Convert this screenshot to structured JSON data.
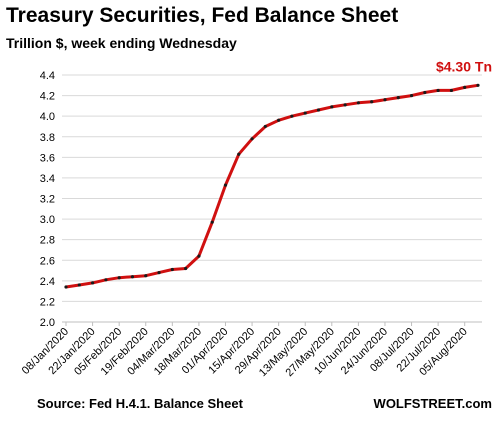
{
  "header": {
    "title": "Treasury Securities, Fed Balance Sheet",
    "subtitle": "Trillion $, week ending Wednesday"
  },
  "footer": {
    "source": "Source: Fed H.4.1. Balance Sheet",
    "brand": "WOLFSTREET.com"
  },
  "colors": {
    "line": "#d01010",
    "markers": "#1a1a1a",
    "grid": "#d9d9d9",
    "end_label": "#d01010"
  },
  "chart_data": {
    "type": "line",
    "title": "Treasury Securities, Fed Balance Sheet",
    "subtitle": "Trillion $, week ending Wednesday",
    "ylim": [
      2.0,
      4.4
    ],
    "yticks": [
      "2.0",
      "2.2",
      "2.4",
      "2.6",
      "2.8",
      "3.0",
      "3.2",
      "3.4",
      "3.6",
      "3.8",
      "4.0",
      "4.2",
      "4.4"
    ],
    "xtick_labels": [
      "08/Jan/2020",
      "22/Jan/2020",
      "05/Feb/2020",
      "19/Feb/2020",
      "04/Mar/2020",
      "18/Mar/2020",
      "01/Apr/2020",
      "15/Apr/2020",
      "29/Apr/2020",
      "13/May/2020",
      "27/May/2020",
      "10/Jun/2020",
      "24/Jun/2020",
      "08/Jul/2020",
      "22/Jul/2020",
      "05/Aug/2020"
    ],
    "grid": true,
    "legend": "none",
    "end_label": "$4.30 Tn",
    "series": [
      {
        "values": [
          2.34,
          2.36,
          2.38,
          2.41,
          2.43,
          2.44,
          2.45,
          2.48,
          2.51,
          2.52,
          2.64,
          2.97,
          3.33,
          3.63,
          3.78,
          3.9,
          3.96,
          4.0,
          4.03,
          4.06,
          4.09,
          4.11,
          4.13,
          4.14,
          4.16,
          4.18,
          4.2,
          4.23,
          4.25,
          4.25,
          4.28,
          4.3
        ]
      }
    ]
  }
}
